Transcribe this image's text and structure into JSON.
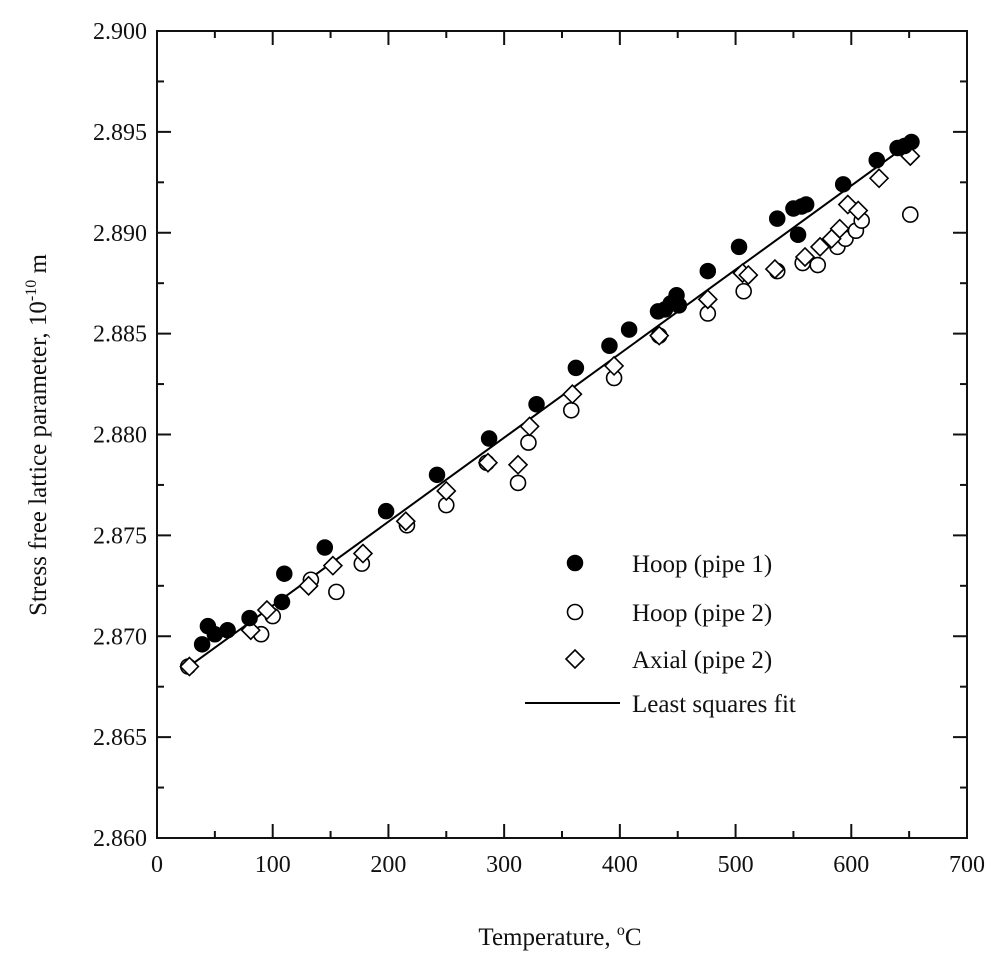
{
  "chart_data": {
    "type": "scatter",
    "xlabel": "Temperature, °C",
    "xlabel_parts": {
      "main": "Temperature, ",
      "sup": "o",
      "unit": "C"
    },
    "ylabel": "Stress free lattice parameter, 10^-10 m",
    "ylabel_parts": {
      "main": "Stress free lattice parameter, 10",
      "sup": "-10",
      "unit": " m"
    },
    "xlim": [
      0,
      700
    ],
    "ylim": [
      2.86,
      2.9
    ],
    "xticks": [
      "0",
      "100",
      "200",
      "300",
      "400",
      "500",
      "600",
      "700"
    ],
    "yticks": [
      "2.860",
      "2.865",
      "2.870",
      "2.875",
      "2.880",
      "2.885",
      "2.890",
      "2.895",
      "2.900"
    ],
    "grid": false,
    "legend_position": "lower-right",
    "series": [
      {
        "name": "Hoop (pipe 1)",
        "marker": "filled-circle",
        "points": [
          [
            39,
            2.8696
          ],
          [
            44,
            2.8705
          ],
          [
            50,
            2.8701
          ],
          [
            61,
            2.8703
          ],
          [
            80,
            2.8709
          ],
          [
            108,
            2.8717
          ],
          [
            110,
            2.8731
          ],
          [
            145,
            2.8744
          ],
          [
            198,
            2.8762
          ],
          [
            242,
            2.878
          ],
          [
            287,
            2.8798
          ],
          [
            328,
            2.8815
          ],
          [
            362,
            2.8833
          ],
          [
            391,
            2.8844
          ],
          [
            408,
            2.8852
          ],
          [
            433,
            2.8861
          ],
          [
            439,
            2.8862
          ],
          [
            444,
            2.8865
          ],
          [
            449,
            2.8869
          ],
          [
            451,
            2.8864
          ],
          [
            476,
            2.8881
          ],
          [
            503,
            2.8893
          ],
          [
            536,
            2.8907
          ],
          [
            550,
            2.8912
          ],
          [
            554,
            2.8899
          ],
          [
            557,
            2.8913
          ],
          [
            561,
            2.8914
          ],
          [
            593,
            2.8924
          ],
          [
            622,
            2.8936
          ],
          [
            640,
            2.8942
          ],
          [
            646,
            2.8943
          ],
          [
            652,
            2.8945
          ]
        ]
      },
      {
        "name": "Hoop (pipe 2)",
        "marker": "open-circle",
        "points": [
          [
            27,
            2.8685
          ],
          [
            90,
            2.8701
          ],
          [
            100,
            2.871
          ],
          [
            133,
            2.8728
          ],
          [
            155,
            2.8722
          ],
          [
            177,
            2.8736
          ],
          [
            216,
            2.8755
          ],
          [
            250,
            2.8765
          ],
          [
            285,
            2.8786
          ],
          [
            312,
            2.8776
          ],
          [
            321,
            2.8796
          ],
          [
            358,
            2.8812
          ],
          [
            395,
            2.8828
          ],
          [
            434,
            2.8849
          ],
          [
            476,
            2.886
          ],
          [
            507,
            2.8871
          ],
          [
            536,
            2.8881
          ],
          [
            558,
            2.8885
          ],
          [
            571,
            2.8884
          ],
          [
            588,
            2.8893
          ],
          [
            595,
            2.8897
          ],
          [
            604,
            2.8901
          ],
          [
            609,
            2.8906
          ],
          [
            651,
            2.8909
          ]
        ]
      },
      {
        "name": "Axial (pipe 2)",
        "marker": "open-diamond",
        "points": [
          [
            28,
            2.8685
          ],
          [
            81,
            2.8703
          ],
          [
            95,
            2.8713
          ],
          [
            131,
            2.8725
          ],
          [
            152,
            2.8735
          ],
          [
            178,
            2.8741
          ],
          [
            215,
            2.8757
          ],
          [
            250,
            2.8772
          ],
          [
            286,
            2.8786
          ],
          [
            312,
            2.8785
          ],
          [
            322,
            2.8804
          ],
          [
            359,
            2.882
          ],
          [
            395,
            2.8834
          ],
          [
            434,
            2.8849
          ],
          [
            476,
            2.8867
          ],
          [
            506,
            2.888
          ],
          [
            511,
            2.8879
          ],
          [
            534,
            2.8882
          ],
          [
            560,
            2.8888
          ],
          [
            573,
            2.8893
          ],
          [
            583,
            2.8897
          ],
          [
            590,
            2.8902
          ],
          [
            597,
            2.8914
          ],
          [
            606,
            2.8911
          ],
          [
            624,
            2.8927
          ],
          [
            651,
            2.8938
          ]
        ]
      },
      {
        "name": "Least squares fit",
        "marker": "line",
        "points": [
          [
            30,
            2.8686
          ],
          [
            652,
            2.8945
          ]
        ]
      }
    ]
  }
}
